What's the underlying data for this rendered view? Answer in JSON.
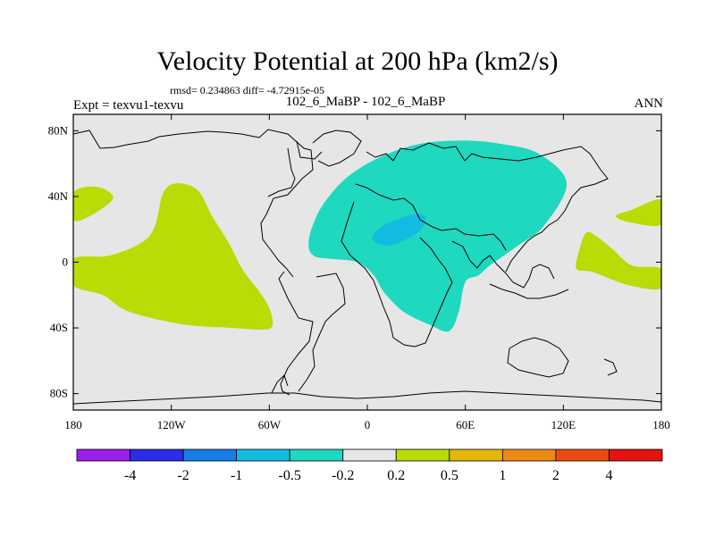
{
  "header": {
    "title": "Velocity Potential at 200 hPa (km2/s)",
    "stats": "rmsd= 0.234863 diff= -4.72915e-05",
    "expt": "Expt = texvu1-texvu",
    "cases": "102_6_MaBP - 102_6_MaBP",
    "season": "ANN"
  },
  "chart_data": {
    "type": "heatmap",
    "title": "Velocity Potential at 200 hPa (km2/s)",
    "projection": "cylindrical equidistant",
    "x_range": [
      -180,
      180
    ],
    "y_range": [
      -90,
      90
    ],
    "x_ticks": [
      {
        "value": -180,
        "label": "180"
      },
      {
        "value": -120,
        "label": "120W"
      },
      {
        "value": -60,
        "label": "60W"
      },
      {
        "value": 0,
        "label": "0"
      },
      {
        "value": 60,
        "label": "60E"
      },
      {
        "value": 120,
        "label": "120E"
      },
      {
        "value": 180,
        "label": "180"
      }
    ],
    "y_ticks": [
      {
        "value": 80,
        "label": "80N"
      },
      {
        "value": 40,
        "label": "40N"
      },
      {
        "value": 0,
        "label": "0"
      },
      {
        "value": -40,
        "label": "40S"
      },
      {
        "value": -80,
        "label": "80S"
      }
    ],
    "colorbar": {
      "labels": [
        "-4",
        "-2",
        "-1",
        "-0.5",
        "-0.2",
        "0.2",
        "0.5",
        "1",
        "2",
        "4"
      ],
      "colors": [
        "#9b1fe8",
        "#2b2be8",
        "#1a7ce6",
        "#12bce0",
        "#1ed8c0",
        "#e6e6e6",
        "#b9dc06",
        "#e2b60b",
        "#ee8815",
        "#ea4a12",
        "#e81212"
      ]
    },
    "background_color": "#e6e6e6",
    "regions": [
      {
        "name": "negative-anomaly-eastern-hemisphere",
        "range": "-0.5 to -0.2",
        "color": "#1ed8c0",
        "outline": [
          [
            -36,
            12
          ],
          [
            -32,
            26
          ],
          [
            -25,
            38
          ],
          [
            -12,
            52
          ],
          [
            8,
            64
          ],
          [
            32,
            72
          ],
          [
            58,
            74
          ],
          [
            82,
            72
          ],
          [
            105,
            66
          ],
          [
            122,
            48
          ],
          [
            108,
            22
          ],
          [
            92,
            10
          ],
          [
            75,
            -2
          ],
          [
            68,
            -8
          ],
          [
            60,
            -12
          ],
          [
            56,
            -30
          ],
          [
            50,
            -42
          ],
          [
            38,
            -38
          ],
          [
            22,
            -30
          ],
          [
            10,
            -18
          ],
          [
            4,
            -8
          ],
          [
            -6,
            0
          ],
          [
            -22,
            2
          ],
          [
            -33,
            4
          ]
        ]
      },
      {
        "name": "stronger-negative-core",
        "range": "-1 to -0.5",
        "color": "#12bce0",
        "outline": [
          [
            3,
            14
          ],
          [
            8,
            21
          ],
          [
            18,
            26
          ],
          [
            28,
            29
          ],
          [
            35,
            28
          ],
          [
            33,
            20
          ],
          [
            24,
            14
          ],
          [
            12,
            10
          ]
        ]
      },
      {
        "name": "positive-anomaly-eastern-pacific",
        "range": "0.2 to 0.5",
        "color": "#b9dc06",
        "outline": [
          [
            -180,
            2
          ],
          [
            -158,
            4
          ],
          [
            -138,
            12
          ],
          [
            -130,
            22
          ],
          [
            -125,
            42
          ],
          [
            -117,
            48
          ],
          [
            -104,
            44
          ],
          [
            -95,
            28
          ],
          [
            -85,
            12
          ],
          [
            -76,
            -5
          ],
          [
            -66,
            -18
          ],
          [
            -60,
            -28
          ],
          [
            -58,
            -38
          ],
          [
            -63,
            -41
          ],
          [
            -82,
            -40
          ],
          [
            -112,
            -38
          ],
          [
            -146,
            -30
          ],
          [
            -162,
            -20
          ],
          [
            -180,
            -14
          ]
        ]
      },
      {
        "name": "positive-anomaly-west-edge",
        "range": "0.2 to 0.5",
        "color": "#b9dc06",
        "outline": [
          [
            -180,
            26
          ],
          [
            -180,
            42
          ],
          [
            -170,
            46
          ],
          [
            -160,
            44
          ],
          [
            -156,
            38
          ],
          [
            -170,
            28
          ]
        ]
      },
      {
        "name": "positive-anomaly-east-edge",
        "range": "0.2 to 0.5",
        "color": "#b9dc06",
        "outline": [
          [
            180,
            38
          ],
          [
            162,
            32
          ],
          [
            152,
            28
          ],
          [
            162,
            24
          ],
          [
            180,
            23
          ]
        ]
      },
      {
        "name": "positive-anomaly-western-pacific",
        "range": "0.2 to 0.5",
        "color": "#b9dc06",
        "outline": [
          [
            130,
            8
          ],
          [
            134,
            18
          ],
          [
            140,
            16
          ],
          [
            150,
            8
          ],
          [
            162,
            -2
          ],
          [
            180,
            -4
          ],
          [
            180,
            -16
          ],
          [
            160,
            -14
          ],
          [
            138,
            -6
          ],
          [
            128,
            -4
          ]
        ]
      }
    ]
  }
}
